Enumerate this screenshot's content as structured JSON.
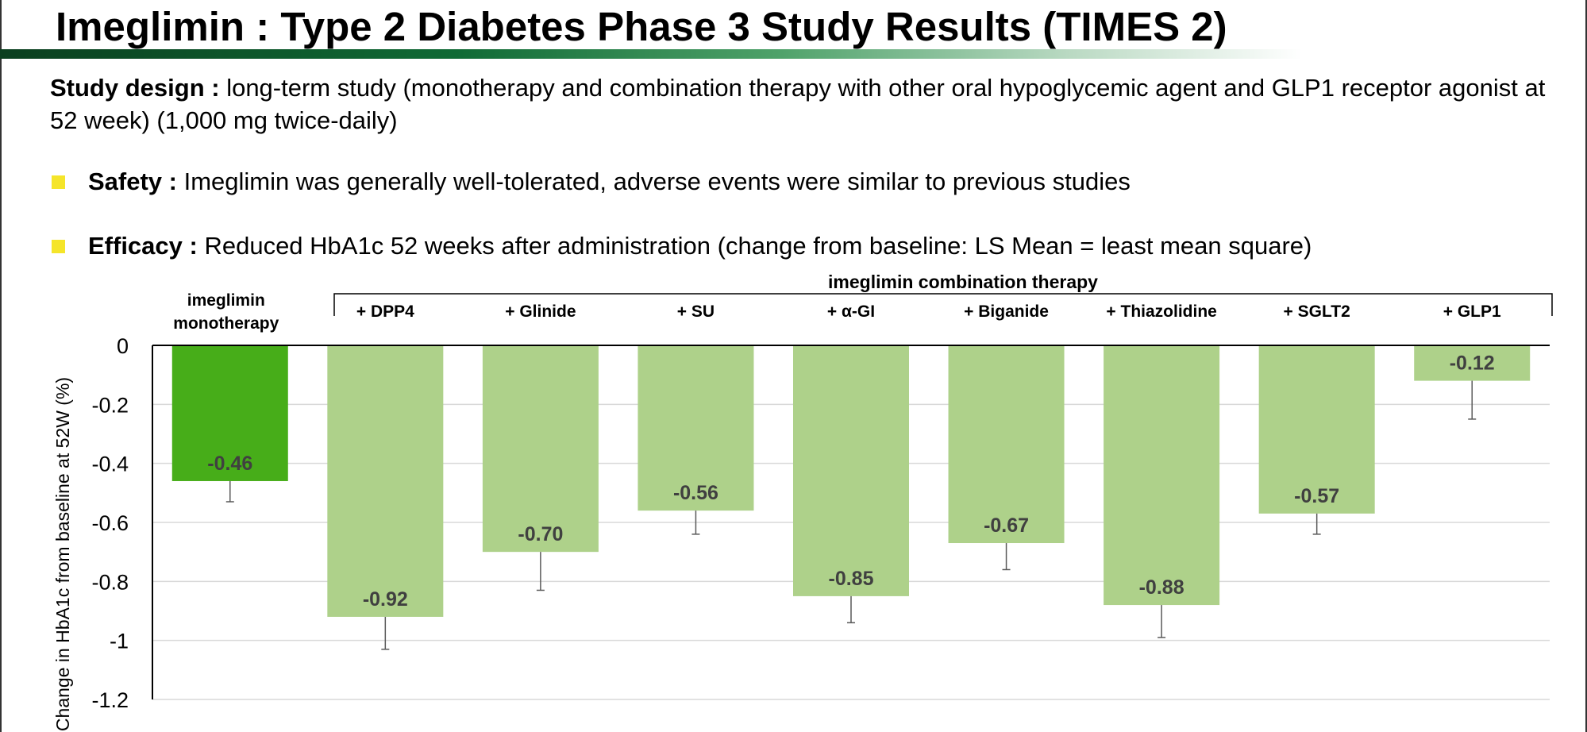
{
  "slide": {
    "title": "Imeglimin : Type 2 Diabetes Phase 3 Study Results (TIMES 2)",
    "study_design": {
      "label": "Study design :",
      "text": " long-term study  (monotherapy and combination therapy with other oral hypoglycemic agent and GLP1 receptor agonist at 52 week) (1,000 mg twice-daily)"
    },
    "bullets": [
      {
        "label": "Safety :",
        "text": " Imeglimin was generally well-tolerated, adverse events were similar to previous studies"
      },
      {
        "label": "Efficacy :",
        "text": " Reduced HbA1c 52 weeks after administration (change from baseline: LS Mean = least mean square)"
      }
    ]
  },
  "colors": {
    "monotherapy_bar": "#47ad19",
    "combination_bar": "#aed18a",
    "bullet": "#f5e52a",
    "title_bar": "#106a35"
  },
  "chart_data": {
    "type": "bar",
    "ylabel": "Change in HbA1c from baseline at 52W  (%)",
    "ylim": [
      -1.2,
      0
    ],
    "yticks": [
      0,
      -0.2,
      -0.4,
      -0.6,
      -0.8,
      -1,
      -1.2
    ],
    "ytick_labels": [
      "0",
      "-0.2",
      "-0.4",
      "-0.6",
      "-0.8",
      "-1",
      "-1.2"
    ],
    "grid": true,
    "group_label": "imeglimin combination therapy",
    "categories": [
      [
        "imeglimin",
        "monotherapy"
      ],
      [
        "+ DPP4"
      ],
      [
        "+ Glinide"
      ],
      [
        "+ SU"
      ],
      [
        "+ α-GI"
      ],
      [
        "+ Biganide"
      ],
      [
        "+ Thiazolidine"
      ],
      [
        "+ SGLT2"
      ],
      [
        "+ GLP1"
      ]
    ],
    "values": [
      -0.46,
      -0.92,
      -0.7,
      -0.56,
      -0.85,
      -0.67,
      -0.88,
      -0.57,
      -0.12
    ],
    "value_labels": [
      "-0.46",
      "-0.92",
      "-0.70",
      "-0.56",
      "-0.85",
      "-0.67",
      "-0.88",
      "-0.57",
      "-0.12"
    ],
    "error_lower": [
      -0.53,
      -1.03,
      -0.83,
      -0.64,
      -0.94,
      -0.76,
      -0.99,
      -0.64,
      -0.25
    ]
  }
}
